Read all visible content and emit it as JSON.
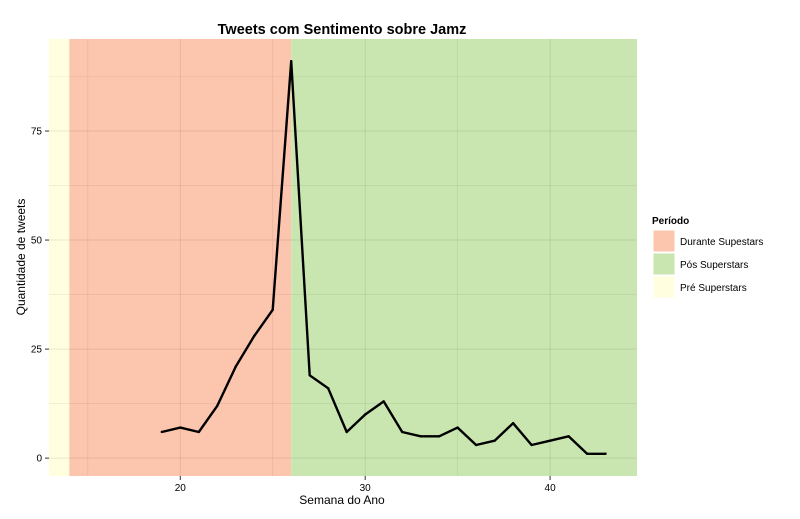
{
  "chart_data": {
    "type": "line",
    "title": "Tweets com Sentimento sobre Jamz",
    "xlabel": "Semana do Ano",
    "ylabel": "Quantidade de tweets",
    "xlim": [
      12.9,
      44.7
    ],
    "ylim": [
      -4.1,
      96.1
    ],
    "x_ticks": [
      20,
      30,
      40
    ],
    "y_ticks": [
      0,
      25,
      50,
      75
    ],
    "grid": true,
    "legend": {
      "title": "Período",
      "position": "right",
      "entries": [
        {
          "label": "Durante Supestars",
          "color": "#fcc5ad"
        },
        {
          "label": "Pós Superstars",
          "color": "#c9e6b0"
        },
        {
          "label": "Pré Superstars",
          "color": "#ffffdf"
        }
      ]
    },
    "periods": [
      {
        "name": "Pré Superstars",
        "x_start": 12.9,
        "x_end": 14,
        "color": "#ffffdf"
      },
      {
        "name": "Durante Supestars",
        "x_start": 14,
        "x_end": 26,
        "color": "#fcc5ad"
      },
      {
        "name": "Pós Superstars",
        "x_start": 26,
        "x_end": 44.7,
        "color": "#c9e6b0"
      }
    ],
    "series": [
      {
        "x": [
          19,
          20,
          21,
          22,
          23,
          24,
          25,
          26,
          27,
          28,
          29,
          30,
          31,
          32,
          33,
          34,
          35,
          36,
          37,
          38,
          39,
          40,
          41,
          42,
          43
        ],
        "values": [
          6,
          7,
          6,
          12,
          21,
          28,
          34,
          91,
          19,
          16,
          6,
          10,
          13,
          6,
          5,
          5,
          7,
          3,
          4,
          8,
          3,
          4,
          5,
          1,
          1
        ],
        "color": "#000000"
      }
    ]
  }
}
